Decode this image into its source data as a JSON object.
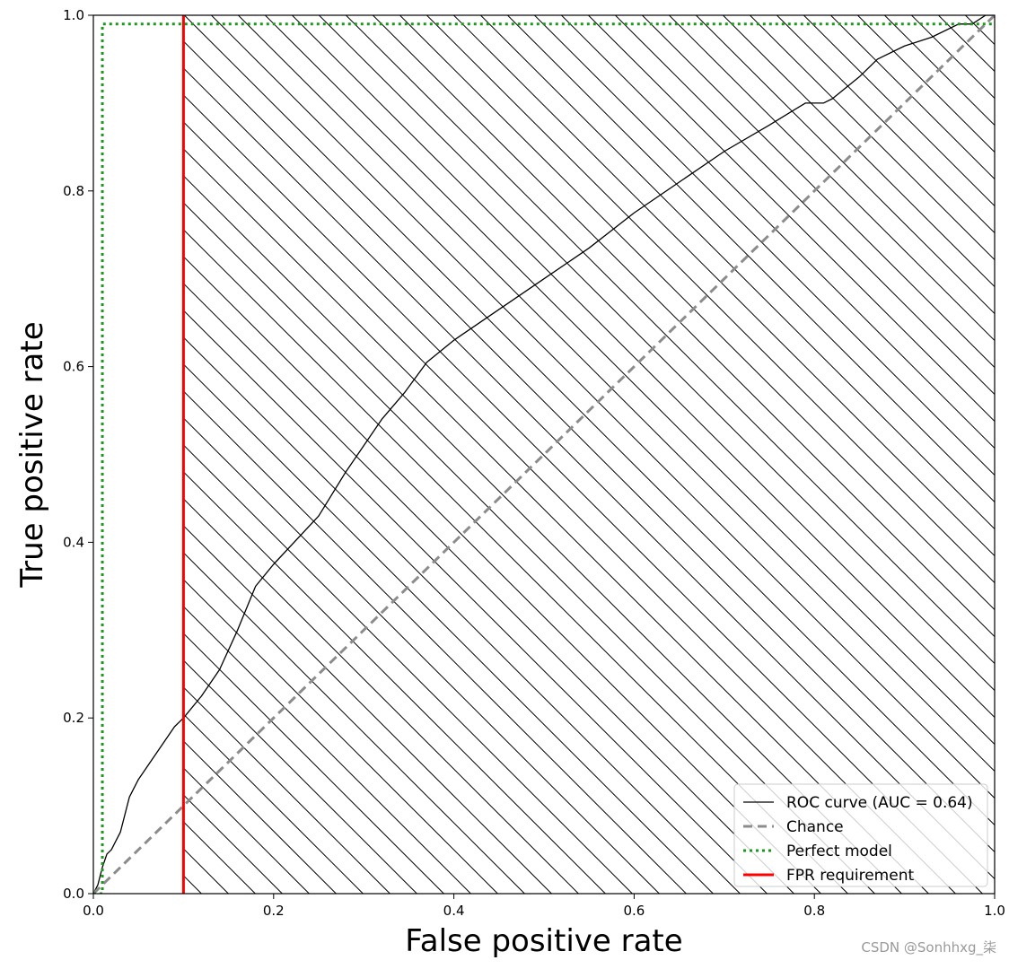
{
  "chart_data": {
    "type": "line",
    "title": "",
    "xlabel": "False positive rate",
    "ylabel": "True positive rate",
    "xlim": [
      0.0,
      1.0
    ],
    "ylim": [
      0.0,
      1.0
    ],
    "xticks": [
      "0.0",
      "0.2",
      "0.4",
      "0.6",
      "0.8",
      "1.0"
    ],
    "yticks": [
      "0.0",
      "0.2",
      "0.4",
      "0.6",
      "0.8",
      "1.0"
    ],
    "grid": false,
    "legend_position": "lower right",
    "hatched_region": {
      "x_from": 0.1,
      "x_to": 1.0,
      "pattern": "diagonal hatch"
    },
    "series": [
      {
        "name": "ROC curve (AUC = 0.64)",
        "color": "#000000",
        "style": "solid",
        "x": [
          0.0,
          0.005,
          0.01,
          0.015,
          0.02,
          0.03,
          0.04,
          0.05,
          0.07,
          0.09,
          0.1,
          0.12,
          0.14,
          0.16,
          0.18,
          0.2,
          0.25,
          0.28,
          0.32,
          0.345,
          0.37,
          0.4,
          0.45,
          0.5,
          0.55,
          0.6,
          0.65,
          0.7,
          0.75,
          0.79,
          0.81,
          0.82,
          0.85,
          0.87,
          0.9,
          0.93,
          0.96,
          0.975,
          0.99,
          1.0
        ],
        "y": [
          0.0,
          0.01,
          0.03,
          0.045,
          0.05,
          0.07,
          0.11,
          0.13,
          0.16,
          0.19,
          0.2,
          0.225,
          0.255,
          0.3,
          0.35,
          0.375,
          0.43,
          0.48,
          0.54,
          0.57,
          0.605,
          0.63,
          0.665,
          0.7,
          0.735,
          0.775,
          0.81,
          0.845,
          0.875,
          0.9,
          0.9,
          0.905,
          0.93,
          0.95,
          0.965,
          0.975,
          0.99,
          0.99,
          1.0,
          1.0
        ]
      },
      {
        "name": "Chance",
        "color": "#8c8c8c",
        "style": "dashed",
        "x": [
          0.0,
          1.0
        ],
        "y": [
          0.0,
          1.0
        ]
      },
      {
        "name": "Perfect model",
        "color": "#1a9a1a",
        "style": "dotted",
        "x": [
          0.0,
          0.01,
          0.01,
          1.0
        ],
        "y": [
          0.0,
          0.0,
          0.99,
          0.99
        ]
      },
      {
        "name": "FPR requirement",
        "color": "#ff0000",
        "style": "solid",
        "x": [
          0.1,
          0.1
        ],
        "y": [
          0.0,
          1.0
        ]
      }
    ]
  },
  "watermark": "CSDN @Sonhhxg_柒"
}
